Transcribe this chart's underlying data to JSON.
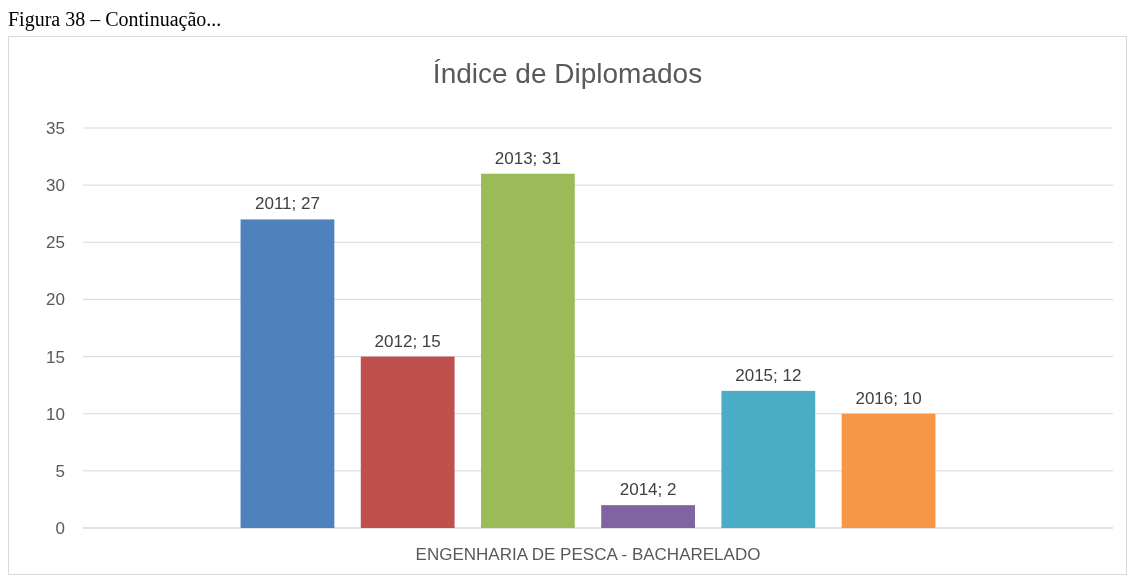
{
  "chart_data": {
    "type": "bar",
    "title": "Índice de Diplomados",
    "annotations": [
      "Figura 38 – Continuação..."
    ],
    "categories": [
      "ENGENHARIA DE PESCA - BACHARELADO"
    ],
    "series": [
      {
        "color": "#4f81bd",
        "values": [
          27
        ],
        "value_labels": [
          "2011; 27"
        ]
      },
      {
        "color": "#c0504d",
        "values": [
          15
        ],
        "value_labels": [
          "2012; 15"
        ]
      },
      {
        "color": "#9bbb59",
        "values": [
          31
        ],
        "value_labels": [
          "2013; 31"
        ]
      },
      {
        "color": "#8064a2",
        "values": [
          2
        ],
        "value_labels": [
          "2014; 2"
        ]
      },
      {
        "color": "#4bacc6",
        "values": [
          12
        ],
        "value_labels": [
          "2015; 12"
        ]
      },
      {
        "color": "#f79646",
        "values": [
          10
        ],
        "value_labels": [
          "2016; 10"
        ]
      }
    ],
    "ylim": [
      0,
      35
    ],
    "yticks": [
      0,
      5,
      10,
      15,
      20,
      25,
      30,
      35
    ],
    "grid": "y"
  }
}
